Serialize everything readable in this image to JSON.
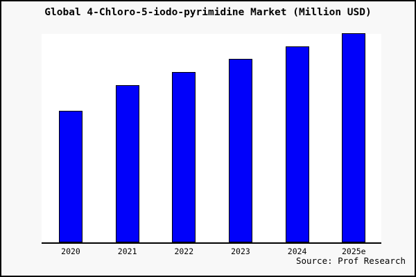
{
  "page": {
    "title": "Global 4-Chloro-5-iodo-pyrimidine Market (Million USD)",
    "source": "Source: Prof Research"
  },
  "colors": {
    "page_background": "#f8f8f8",
    "plot_background": "#ffffff",
    "bar_fill": "#0101fa",
    "bar_border": "#000000",
    "axis": "#000000",
    "frame_border": "#000000",
    "text": "#000000"
  },
  "chart_data": {
    "type": "bar",
    "title": "Global 4-Chloro-5-iodo-pyrimidine Market (Million USD)",
    "categories": [
      "2020",
      "2021",
      "2022",
      "2023",
      "2024",
      "2025e"
    ],
    "values": [
      62.9,
      75.2,
      81.5,
      87.7,
      93.7,
      100
    ],
    "value_note": "No y-axis ticks or gridlines shown; values are relative bar heights as percent of the tallest (2025e) bar.",
    "xlabel": "",
    "ylabel": "",
    "ylim": [
      0,
      100
    ],
    "grid": false,
    "legend": false,
    "legend_position": "none",
    "annotations": [
      "Source: Prof Research"
    ]
  }
}
